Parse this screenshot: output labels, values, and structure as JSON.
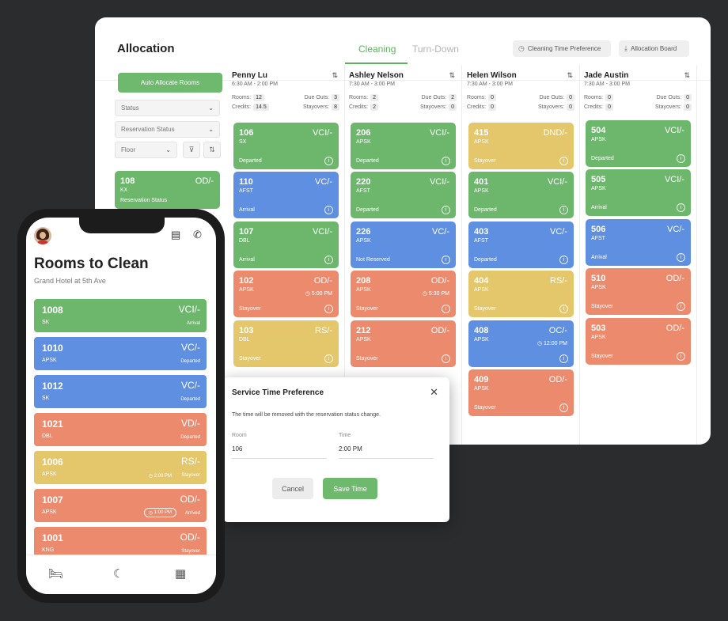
{
  "desktop": {
    "title": "Allocation",
    "tabs": [
      "Cleaning",
      "Turn-Down"
    ],
    "header_buttons": {
      "pref": "Cleaning Time Preference",
      "board": "Allocation Board"
    },
    "auto_allocate": "Auto Allocate Rooms",
    "filters": {
      "status": "Status",
      "reservation": "Reservation Status",
      "floor": "Floor"
    },
    "left_card": {
      "room": "108",
      "status": "OD/-",
      "type": "KX",
      "res": "Reservation Status"
    },
    "stat_labels": {
      "rooms": "Rooms:",
      "credits": "Credits:",
      "due": "Due Outs:",
      "stay": "Stayovers:"
    },
    "staff": [
      {
        "name": "Penny Lu",
        "time": "6:30 AM - 2:00 PM",
        "rooms": "12",
        "credits": "14.5",
        "due": "3",
        "stay": "8",
        "cards": [
          {
            "room": "106",
            "status": "VCI/-",
            "type": "SX",
            "res": "Departed",
            "color": "green",
            "time": ""
          },
          {
            "room": "110",
            "status": "VC/-",
            "type": "AFST",
            "res": "Arrival",
            "color": "blue",
            "time": ""
          },
          {
            "room": "107",
            "status": "VCI/-",
            "type": "DBL",
            "res": "Arrival",
            "color": "green",
            "time": ""
          },
          {
            "room": "102",
            "status": "OD/-",
            "type": "APSK",
            "res": "Stayover",
            "color": "orange",
            "time": "5:00 PM"
          },
          {
            "room": "103",
            "status": "RS/-",
            "type": "DBL",
            "res": "Stayover",
            "color": "yellow",
            "time": ""
          }
        ]
      },
      {
        "name": "Ashley Nelson",
        "time": "7:30 AM - 3:00 PM",
        "rooms": "2",
        "credits": "2",
        "due": "2",
        "stay": "0",
        "cards": [
          {
            "room": "206",
            "status": "VCI/-",
            "type": "APSK",
            "res": "Departed",
            "color": "green",
            "time": ""
          },
          {
            "room": "220",
            "status": "VCI/-",
            "type": "AFST",
            "res": "Departed",
            "color": "green",
            "time": ""
          },
          {
            "room": "226",
            "status": "VC/-",
            "type": "APSK",
            "res": "Not Reserved",
            "color": "blue",
            "time": ""
          },
          {
            "room": "208",
            "status": "OD/-",
            "type": "APSK",
            "res": "Stayover",
            "color": "orange",
            "time": "5:30 PM"
          },
          {
            "room": "212",
            "status": "OD/-",
            "type": "APSK",
            "res": "Stayover",
            "color": "orange",
            "time": ""
          }
        ]
      },
      {
        "name": "Helen Wilson",
        "time": "7:30 AM - 3:00 PM",
        "rooms": "0",
        "credits": "0",
        "due": "0",
        "stay": "0",
        "cards": [
          {
            "room": "415",
            "status": "DND/-",
            "type": "APSK",
            "res": "Stayover",
            "color": "yellow",
            "time": ""
          },
          {
            "room": "401",
            "status": "VCI/-",
            "type": "APSK",
            "res": "Departed",
            "color": "green",
            "time": ""
          },
          {
            "room": "403",
            "status": "VC/-",
            "type": "AFST",
            "res": "Departed",
            "color": "blue",
            "time": ""
          },
          {
            "room": "404",
            "status": "RS/-",
            "type": "APSK",
            "res": "Stayover",
            "color": "yellow",
            "time": ""
          },
          {
            "room": "408",
            "status": "OC/-",
            "type": "APSK",
            "res": "",
            "color": "blue",
            "time": "12:00 PM"
          },
          {
            "room": "409",
            "status": "OD/-",
            "type": "APSK",
            "res": "Stayover",
            "color": "orange",
            "time": ""
          }
        ]
      },
      {
        "name": "Jade Austin",
        "time": "7:30 AM - 3:00 PM",
        "rooms": "0",
        "credits": "0",
        "due": "0",
        "stay": "0",
        "cards": [
          {
            "room": "504",
            "status": "VCI/-",
            "type": "APSK",
            "res": "Departed",
            "color": "green",
            "time": ""
          },
          {
            "room": "505",
            "status": "VCI/-",
            "type": "APSK",
            "res": "Arrival",
            "color": "green",
            "time": ""
          },
          {
            "room": "506",
            "status": "VC/-",
            "type": "AFST",
            "res": "Arrival",
            "color": "blue",
            "time": ""
          },
          {
            "room": "510",
            "status": "OD/-",
            "type": "APSK",
            "res": "Stayover",
            "color": "orange",
            "time": ""
          },
          {
            "room": "503",
            "status": "OD/-",
            "type": "APSK",
            "res": "Stayover",
            "color": "orange",
            "time": ""
          }
        ]
      }
    ]
  },
  "modal": {
    "title": "Service Time Preference",
    "desc": "The time will be removed with the reservation status change.",
    "room_label": "Room",
    "room_value": "106",
    "time_label": "Time",
    "time_value": "2:00 PM",
    "cancel": "Cancel",
    "save": "Save Time"
  },
  "phone": {
    "title": "Rooms to Clean",
    "subtitle": "Grand Hotel at 5th Ave",
    "cards": [
      {
        "room": "1008",
        "status": "VCI/-",
        "type": "SK",
        "res": "Arrival",
        "color": "green",
        "time": "",
        "pill": false
      },
      {
        "room": "1010",
        "status": "VC/-",
        "type": "APSK",
        "res": "Departed",
        "color": "blue",
        "time": "",
        "pill": false
      },
      {
        "room": "1012",
        "status": "VC/-",
        "type": "SK",
        "res": "Departed",
        "color": "blue",
        "time": "",
        "pill": false
      },
      {
        "room": "1021",
        "status": "VD/-",
        "type": "DBL",
        "res": "Departed",
        "color": "orange",
        "time": "",
        "pill": false
      },
      {
        "room": "1006",
        "status": "RS/-",
        "type": "APSK",
        "res": "Stayover",
        "color": "yellow",
        "time": "2:00 PM",
        "pill": false
      },
      {
        "room": "1007",
        "status": "OD/-",
        "type": "APSK",
        "res": "Arrived",
        "color": "orange",
        "time": "1:00 PM",
        "pill": true
      },
      {
        "room": "1001",
        "status": "OD/-",
        "type": "KNG",
        "res": "Stayover",
        "color": "orange",
        "time": "",
        "pill": false
      }
    ]
  },
  "icons": {
    "sort": "sort-icon",
    "info": "info-icon",
    "clock": "clock-icon",
    "close": "close-icon",
    "calendar": "calendar-icon",
    "phone": "phone-icon",
    "bed": "bed-icon",
    "moon": "moon-icon",
    "grid": "grid-icon"
  },
  "colors": {
    "green": "#6db76c",
    "blue": "#5f8fe0",
    "orange": "#eb8a6c",
    "yellow": "#e4c66b",
    "accent": "#5db05e"
  }
}
